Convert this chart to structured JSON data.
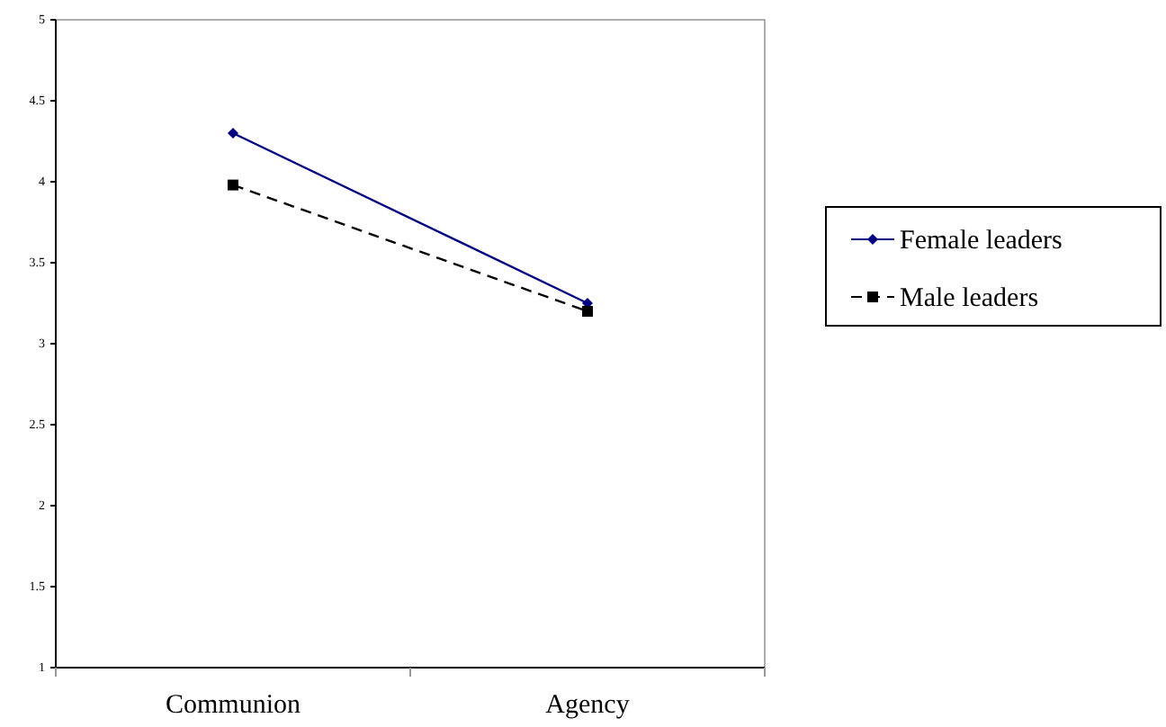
{
  "chart_data": {
    "type": "line",
    "categories": [
      "Communion",
      "Agency"
    ],
    "ylim": [
      1,
      5
    ],
    "yticks": [
      1,
      1.5,
      2,
      2.5,
      3,
      3.5,
      4,
      4.5,
      5
    ],
    "legend": "right",
    "series": [
      {
        "name": "Female leaders",
        "color": "#000080",
        "values": [
          4.3,
          3.25
        ],
        "marker": "diamond",
        "line_style": "solid"
      },
      {
        "name": "Male leaders",
        "color": "#000000",
        "values": [
          3.98,
          3.2
        ],
        "marker": "square",
        "line_style": "dashed"
      }
    ]
  }
}
